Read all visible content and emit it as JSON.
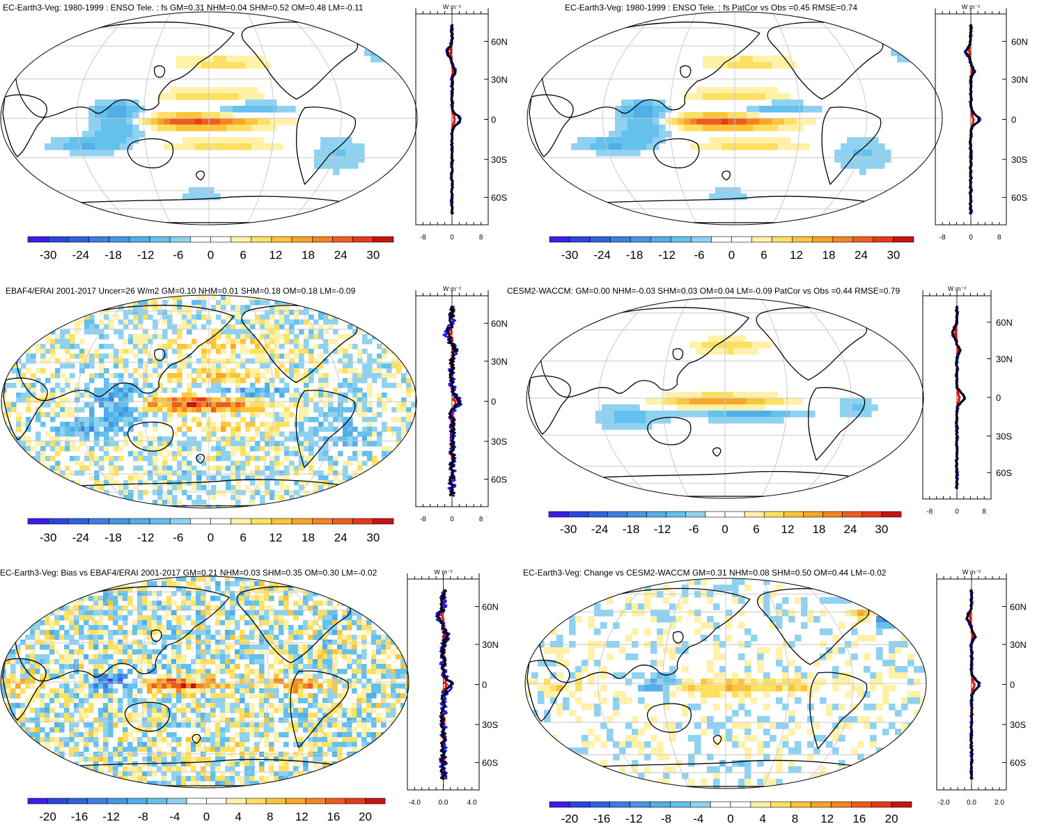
{
  "palette": {
    "diverging": [
      "#3a1fe8",
      "#2a46e0",
      "#2e62de",
      "#3c7fe0",
      "#4597e3",
      "#52aee8",
      "#64c0ec",
      "#8fd1f0",
      "#ffffff",
      "#ffffff",
      "#fff1a8",
      "#fde062",
      "#fcc43a",
      "#f9a526",
      "#f58421",
      "#ef5d1c",
      "#e53919",
      "#c81313"
    ],
    "coast": "#000000",
    "grid": "#c8c8c8",
    "line_blue": "#1a1aff",
    "line_red": "#ff0000",
    "line_black": "#000000"
  },
  "panels": [
    {
      "id": "p1",
      "title": "EC-Earth3-Veg: 1980-1999 : ENSO Tele. : fs GM=0.31 NHM=0.04 SHM=0.52 OM=0.48 LM=-0.11",
      "units": "W m⁻²",
      "colorbar": [
        "-30",
        "-24",
        "-18",
        "-12",
        "-6",
        "0",
        "6",
        "12",
        "18",
        "24",
        "30"
      ],
      "profile_ticks": [
        "-8",
        "0",
        "8"
      ],
      "lat_labels": [
        "60N",
        "30N",
        "0",
        "30S",
        "60S"
      ]
    },
    {
      "id": "p2",
      "title": "EC-Earth3-Veg: 1980-1999 : ENSO Tele. : fs PatCor vs Obs =0.45 RMSE=0.74",
      "units": "W m⁻²",
      "colorbar": [
        "-30",
        "-24",
        "-18",
        "-12",
        "-6",
        "0",
        "6",
        "12",
        "18",
        "24",
        "30"
      ],
      "profile_ticks": [
        "-8",
        "0",
        "8"
      ],
      "lat_labels": [
        "60N",
        "30N",
        "0",
        "30S",
        "60S"
      ]
    },
    {
      "id": "p3",
      "title": "EBAF4/ERAI 2001-2017 Uncer=26 W/m2 GM=0.10 NHM=0.01 SHM=0.18 OM=0.18 LM=-0.09",
      "units": "W m⁻²",
      "colorbar": [
        "-30",
        "-24",
        "-18",
        "-12",
        "-6",
        "0",
        "6",
        "12",
        "18",
        "24",
        "30"
      ],
      "profile_ticks": [
        "-8",
        "0",
        "8"
      ],
      "lat_labels": [
        "60N",
        "30N",
        "0",
        "30S",
        "60S"
      ]
    },
    {
      "id": "p4",
      "title": "CESM2-WACCM: GM=0.00 NHM=-0.03 SHM=0.03 OM=0.04 LM=-0.09 PatCor vs Obs =0.44 RMSE=0.79",
      "units": "W m⁻²",
      "colorbar": [
        "-30",
        "-24",
        "-18",
        "-12",
        "-6",
        "0",
        "6",
        "12",
        "18",
        "24",
        "30"
      ],
      "profile_ticks": [
        "-8",
        "0",
        "8"
      ],
      "lat_labels": [
        "60N",
        "30N",
        "0",
        "30S",
        "60S"
      ]
    },
    {
      "id": "p5",
      "title": "EC-Earth3-Veg: Bias vs EBAF4/ERAI 2001-2017 GM=0.21 NHM=0.03 SHM=0.35 OM=0.30 LM=-0.02",
      "units": "W m⁻²",
      "colorbar": [
        "-20",
        "-16",
        "-12",
        "-8",
        "-4",
        "0",
        "4",
        "8",
        "12",
        "16",
        "20"
      ],
      "profile_ticks": [
        "-4.0",
        "0.0",
        "4.0"
      ],
      "lat_labels": [
        "60N",
        "30N",
        "0",
        "30S",
        "60S"
      ]
    },
    {
      "id": "p6",
      "title": "EC-Earth3-Veg: Change vs CESM2-WACCM GM=0.31 NHM=0.08 SHM=0.50 OM=0.44 LM=-0.02",
      "units": "W m⁻²",
      "colorbar": [
        "-20",
        "-16",
        "-12",
        "-8",
        "-4",
        "0",
        "4",
        "8",
        "12",
        "16",
        "20"
      ],
      "profile_ticks": [
        "-2.0",
        "0.0",
        "2.0"
      ],
      "lat_labels": [
        "60N",
        "30N",
        "0",
        "30S",
        "60S"
      ]
    }
  ]
}
